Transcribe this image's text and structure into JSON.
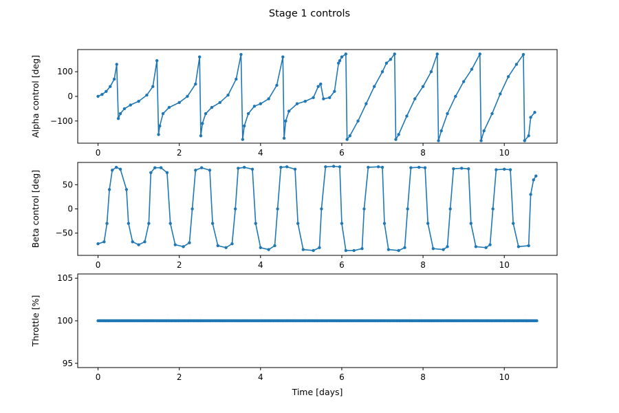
{
  "chart_data": {
    "type": "line",
    "title": "Stage 1 controls",
    "color": "#1f77b4",
    "subplots": [
      {
        "ylabel": "Alpha control [deg]",
        "xlabel": "",
        "xlim": [
          -0.5,
          11.3
        ],
        "ylim": [
          -190,
          190
        ],
        "xticks": [
          0,
          2,
          4,
          6,
          8,
          10
        ],
        "yticks": [
          -100,
          0,
          100
        ],
        "series": [
          {
            "x": [
              0.0,
              0.1,
              0.2,
              0.3,
              0.4,
              0.46,
              0.5,
              0.55,
              0.65,
              0.8,
              1.0,
              1.2,
              1.35,
              1.45,
              1.49,
              1.52,
              1.6,
              1.75,
              2.0,
              2.2,
              2.4,
              2.5,
              2.53,
              2.57,
              2.65,
              2.8,
              3.0,
              3.2,
              3.4,
              3.52,
              3.56,
              3.6,
              3.7,
              3.85,
              4.0,
              4.2,
              4.4,
              4.55,
              4.58,
              4.62,
              4.7,
              4.9,
              5.1,
              5.3,
              5.42,
              5.48,
              5.55,
              5.7,
              5.82,
              5.92,
              5.95,
              6.0,
              6.1,
              6.13,
              6.2,
              6.4,
              6.6,
              6.8,
              7.0,
              7.1,
              7.2,
              7.3,
              7.33,
              7.4,
              7.6,
              7.8,
              8.0,
              8.2,
              8.35,
              8.38,
              8.45,
              8.6,
              8.8,
              9.0,
              9.2,
              9.4,
              9.43,
              9.5,
              9.7,
              9.9,
              10.1,
              10.3,
              10.47,
              10.5,
              10.6,
              10.65,
              10.75
            ],
            "y": [
              0,
              8,
              20,
              40,
              70,
              130,
              -90,
              -70,
              -50,
              -35,
              -20,
              5,
              40,
              145,
              -155,
              -120,
              -70,
              -45,
              -25,
              0,
              50,
              160,
              -160,
              -110,
              -70,
              -45,
              -25,
              5,
              70,
              170,
              -175,
              -120,
              -70,
              -40,
              -30,
              -10,
              45,
              160,
              -170,
              -100,
              -60,
              -30,
              -20,
              -5,
              40,
              50,
              -10,
              -5,
              20,
              135,
              145,
              160,
              172,
              -175,
              -160,
              -100,
              -30,
              40,
              100,
              135,
              150,
              172,
              -175,
              -155,
              -80,
              -10,
              40,
              100,
              172,
              -180,
              -140,
              -70,
              0,
              60,
              110,
              172,
              -180,
              -140,
              -70,
              10,
              80,
              130,
              170,
              -180,
              -160,
              -85,
              -65
            ]
          }
        ]
      },
      {
        "ylabel": "Beta control [deg]",
        "xlabel": "",
        "xlim": [
          -0.5,
          11.3
        ],
        "ylim": [
          -96,
          96
        ],
        "xticks": [
          0,
          2,
          4,
          6,
          8,
          10
        ],
        "yticks": [
          -50,
          0,
          50
        ],
        "series": [
          {
            "x": [
              0.0,
              0.15,
              0.22,
              0.28,
              0.35,
              0.45,
              0.55,
              0.7,
              0.75,
              0.85,
              1.0,
              1.15,
              1.25,
              1.3,
              1.4,
              1.55,
              1.7,
              1.78,
              1.9,
              2.1,
              2.25,
              2.32,
              2.4,
              2.55,
              2.75,
              2.82,
              2.95,
              3.15,
              3.3,
              3.38,
              3.45,
              3.6,
              3.8,
              3.88,
              4.0,
              4.2,
              4.35,
              4.42,
              4.5,
              4.65,
              4.85,
              4.92,
              5.05,
              5.3,
              5.45,
              5.5,
              5.6,
              5.8,
              5.95,
              6.0,
              6.1,
              6.3,
              6.5,
              6.55,
              6.65,
              6.9,
              7.0,
              7.05,
              7.15,
              7.4,
              7.55,
              7.62,
              7.7,
              7.9,
              8.05,
              8.12,
              8.25,
              8.5,
              8.6,
              8.67,
              8.75,
              8.95,
              9.12,
              9.18,
              9.3,
              9.55,
              9.65,
              9.72,
              9.8,
              10.0,
              10.15,
              10.22,
              10.35,
              10.6,
              10.65,
              10.72,
              10.78
            ],
            "y": [
              -72,
              -68,
              -30,
              40,
              80,
              86,
              82,
              40,
              -30,
              -68,
              -74,
              -68,
              -30,
              75,
              85,
              85,
              75,
              -30,
              -74,
              -78,
              -70,
              0,
              80,
              85,
              80,
              -30,
              -76,
              -80,
              -72,
              0,
              84,
              86,
              82,
              -30,
              -80,
              -84,
              -76,
              0,
              86,
              87,
              82,
              -30,
              -84,
              -86,
              -80,
              0,
              87,
              88,
              87,
              -30,
              -86,
              -86,
              -82,
              0,
              86,
              87,
              86,
              -30,
              -84,
              -86,
              -80,
              0,
              85,
              86,
              85,
              -30,
              -82,
              -84,
              -78,
              0,
              83,
              84,
              83,
              -30,
              -78,
              -80,
              -74,
              0,
              81,
              82,
              81,
              -30,
              -78,
              -76,
              30,
              60,
              68
            ]
          }
        ]
      },
      {
        "ylabel": "Throttle [%]",
        "xlabel": "Time [days]",
        "xlim": [
          -0.5,
          11.3
        ],
        "ylim": [
          94.5,
          105.5
        ],
        "xticks": [
          0,
          2,
          4,
          6,
          8,
          10
        ],
        "yticks": [
          95,
          100,
          105
        ],
        "series": [
          {
            "x": [
              0,
              10.8
            ],
            "y": [
              100,
              100
            ]
          }
        ]
      }
    ]
  }
}
